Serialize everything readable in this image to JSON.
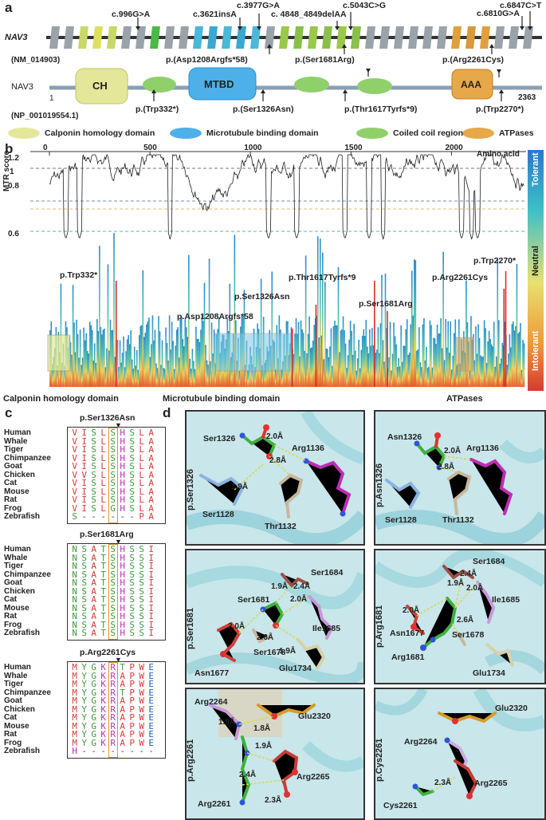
{
  "panel_a": {
    "label": "a",
    "gene": "NAV3",
    "transcript": "(NM_014903)",
    "protein_name": "NAV3",
    "protein_id": "(NP_001019554.1)",
    "start": "1",
    "end": "2363",
    "dna_mutations": [
      "c.996G>A",
      "c.3621insA",
      "c.3977G>A",
      "c. 4848_4849delAA",
      "c.5043C>G",
      "c.6847C>T",
      "c.6810G>A"
    ],
    "protein_mut_top": [
      "p.(Asp1208Argfs*58)",
      "p.(Ser1681Arg)",
      "p.(Arg2261Cys)"
    ],
    "protein_mut_bottom": [
      "p.(Trp332*)",
      "p.(Ser1326Asn)",
      "p.(Thr1617Tyrfs*9)",
      "p.(Trp2270*)"
    ],
    "domains": {
      "ch": "CH",
      "mtbd": "MTBD",
      "aaa": "AAA"
    },
    "legend": [
      {
        "label": "Calponin homology domain",
        "color": "#e4e79a"
      },
      {
        "label": "Microtubule binding domain",
        "color": "#4db0e8"
      },
      {
        "label": "Coiled coil region",
        "color": "#8fd06a"
      },
      {
        "label": "ATPases",
        "color": "#e7a84a"
      }
    ]
  },
  "panel_b": {
    "label": "b",
    "axis_title": "Amino acid",
    "ylabel": "MTR score",
    "scale_labels": {
      "top": "Tolerant",
      "mid": "Neutral",
      "bottom": "Intolerant"
    },
    "domain_labels": [
      "Calponin homology domain",
      "Microtubule binding domain",
      "ATPases"
    ],
    "mutation_labels": [
      "p.Trp332*",
      "p.Asp1208Argfs*58",
      "p.Ser1326Asn",
      "p.Thr1617Tyrfs*9",
      "p.Ser1681Arg",
      "p.Arg2261Cys",
      "p.Trp2270*"
    ]
  },
  "chart_data": {
    "type": "line",
    "xlabel": "Amino acid",
    "ylabel": "MTR score",
    "x_ticks": [
      0,
      500,
      1000,
      1500,
      2000
    ],
    "y_ticks": [
      0.6,
      0.8,
      1.0,
      1.2
    ],
    "xlim": [
      0,
      2363
    ],
    "mutation_positions": [
      {
        "label": "p.Trp332*",
        "x": 332
      },
      {
        "label": "p.Asp1208Argfs*58",
        "x": 1208
      },
      {
        "label": "p.Ser1326Asn",
        "x": 1326
      },
      {
        "label": "p.Thr1617Tyrfs*9",
        "x": 1617
      },
      {
        "label": "p.Ser1681Arg",
        "x": 1681
      },
      {
        "label": "p.Arg2261Cys",
        "x": 2261
      },
      {
        "label": "p.Trp2270*",
        "x": 2270
      }
    ]
  },
  "panel_c": {
    "label": "c",
    "species": [
      "Human",
      "Whale",
      "Tiger",
      "Chimpanzee",
      "Goat",
      "Chicken",
      "Cat",
      "Mouse",
      "Rat",
      "Frog",
      "Zebrafish"
    ],
    "blocks": [
      {
        "title": "p.Ser1326Asn",
        "rows": [
          "VISLSHSLA",
          "VISLSHSLA",
          "VISLSHSLA",
          "VISLSHSLA",
          "VISLSHSLA",
          "VVSLSHSLA",
          "VISLSHSLA",
          "VISLSHSLA",
          "VISLSHSLA",
          "VISLGHSLA",
          "S------PA"
        ]
      },
      {
        "title": "p.Ser1681Arg",
        "rows": [
          "NSATSHSSI",
          "NSATSHSSI",
          "NSATSHSSI",
          "NSATSHSSI",
          "NSATSHSSI",
          "NSATSHSSI",
          "NSATSHSSI",
          "NSATSHSSI",
          "NSATSHSSI",
          "NSATSHSSI",
          "NSATSHSSI"
        ]
      },
      {
        "title": "p.Arg2261Cys",
        "rows": [
          "MYGKRTPWE",
          "MYGKRAPWE",
          "MYGKRAPWE",
          "MYGKRTPWE",
          "MYGKRAPWE",
          "MYGKRAPWE",
          "MYGKRAPWE",
          "MYGKRAPWE",
          "MYGKRAPWE",
          "MYGKRAPWE",
          "H--------"
        ]
      }
    ]
  },
  "panel_d": {
    "label": "d",
    "panels": [
      {
        "side": "p.Ser1326",
        "residues": [
          "Ser1326",
          "Arg1136",
          "Ser1128",
          "Thr1132"
        ],
        "distances": [
          "2.0Å",
          "2.8Å",
          "1.9Å"
        ]
      },
      {
        "side": "p.Asn1326",
        "residues": [
          "Asn1326",
          "Arg1136",
          "Ser1128",
          "Thr1132"
        ],
        "distances": [
          "2.0Å",
          "2.8Å"
        ]
      },
      {
        "side": "p.Ser1681",
        "residues": [
          "Ser1684",
          "Ser1681",
          "Ile1685",
          "Asn1677",
          "Ser1678",
          "Glu1734"
        ],
        "distances": [
          "1.9Å",
          "2.4Å",
          "2.0Å",
          "2.0Å",
          "2.6Å",
          "1.9Å"
        ]
      },
      {
        "side": "p.Arg1681",
        "residues": [
          "Ser1684",
          "Ile1685",
          "Asn1677",
          "Ser1678",
          "Arg1681",
          "Glu1734"
        ],
        "distances": [
          "2.4Å",
          "1.9Å",
          "2.0Å",
          "2.0Å",
          "2.6Å"
        ]
      },
      {
        "side": "p.Arg2261",
        "residues": [
          "Arg2264",
          "Glu2320",
          "Arg2265",
          "Arg2261"
        ],
        "distances": [
          "1.9Å",
          "1.8Å",
          "1.9Å",
          "2.4Å",
          "2.3Å"
        ]
      },
      {
        "side": "p.Cys2261",
        "residues": [
          "Glu2320",
          "Arg2264",
          "Arg2265",
          "Cys2261"
        ],
        "distances": [
          "2.3Å"
        ]
      }
    ]
  }
}
